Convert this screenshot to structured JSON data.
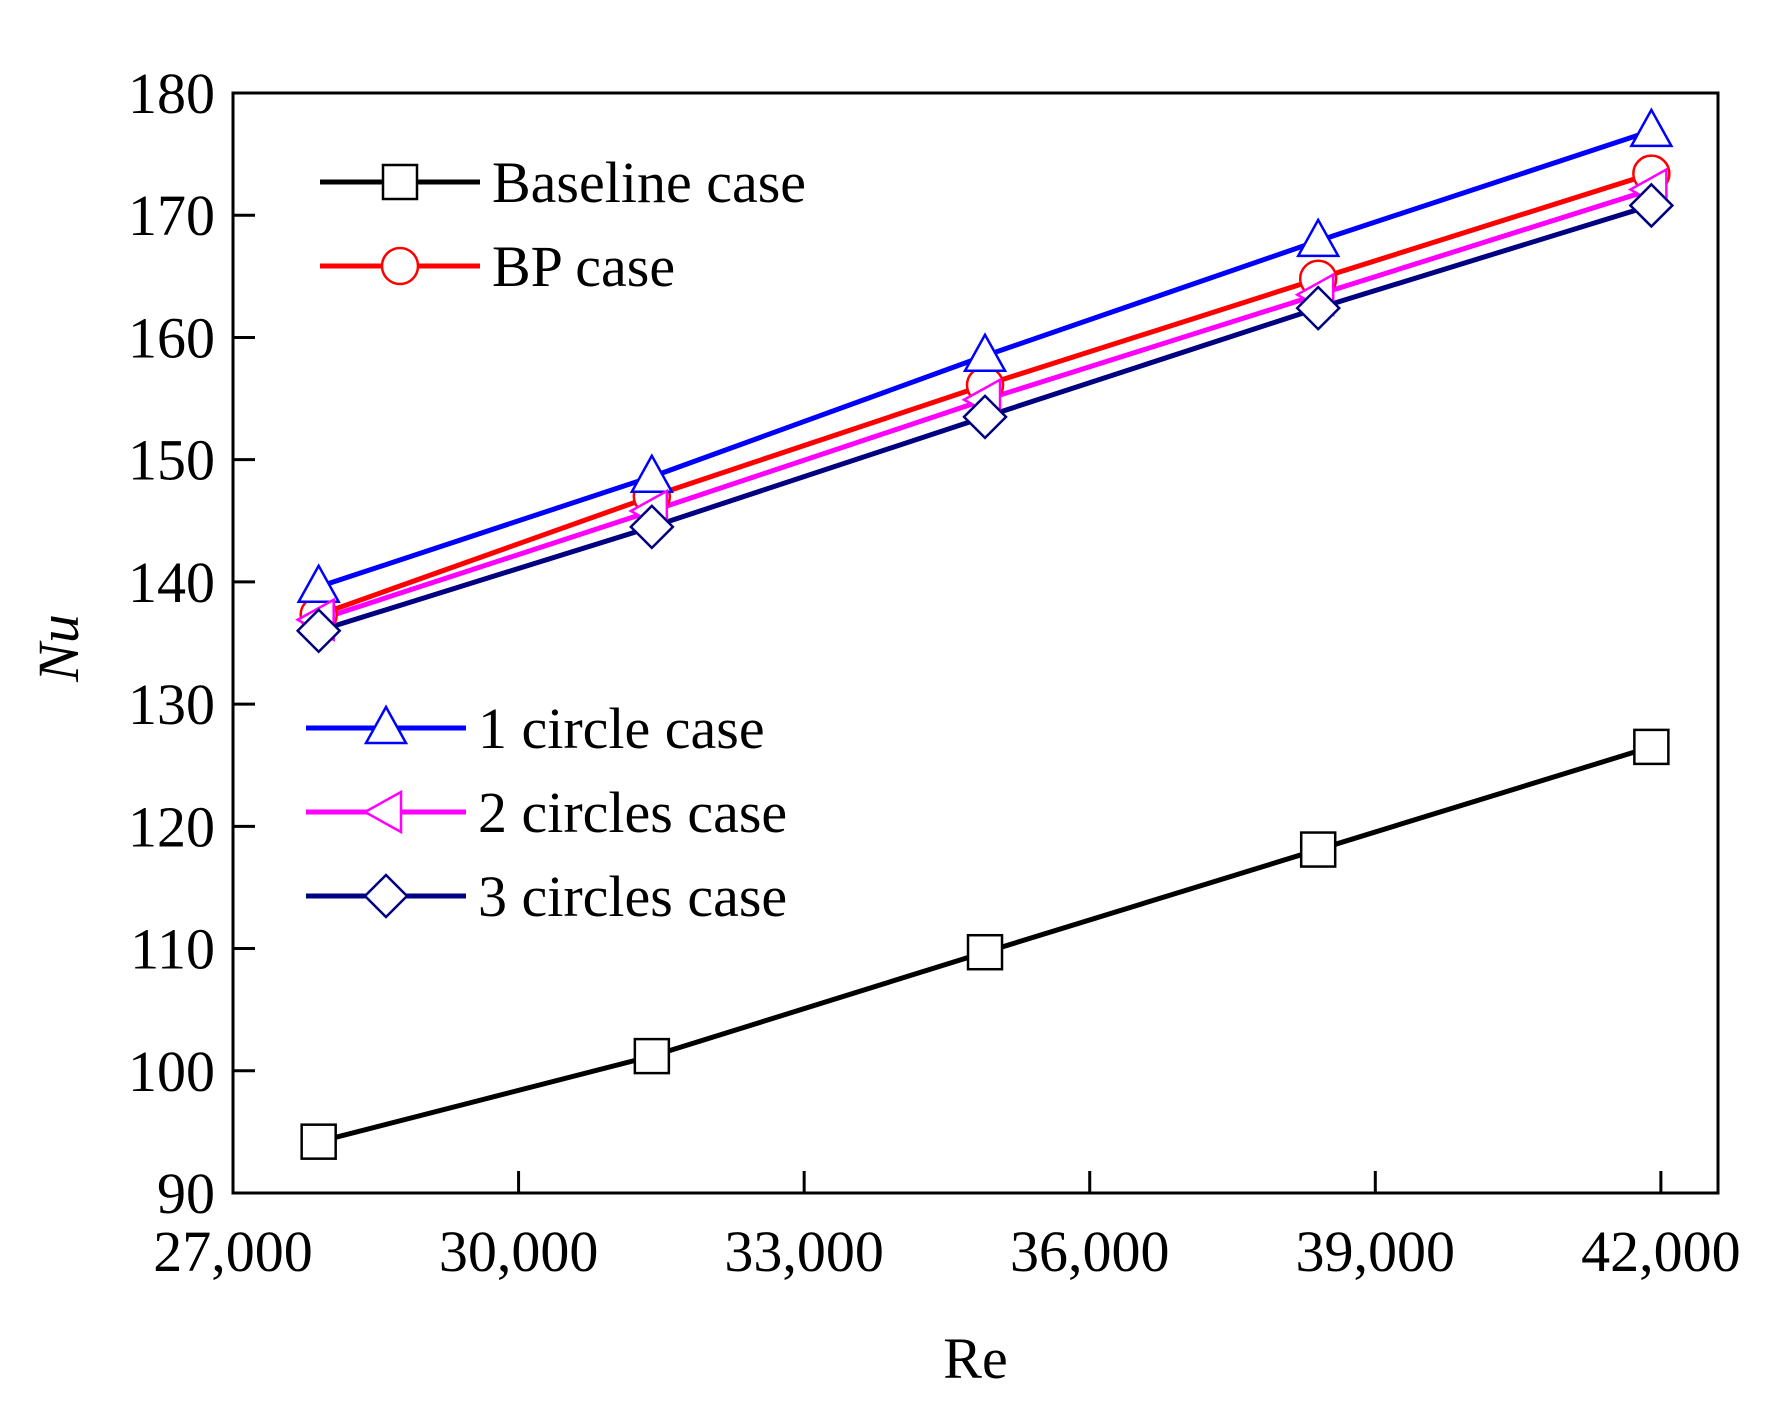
{
  "chart_data": {
    "type": "line",
    "xlabel": "Re",
    "ylabel": "Nu",
    "xlim": [
      27000,
      42600
    ],
    "ylim": [
      90,
      180
    ],
    "xticks": [
      27000,
      30000,
      33000,
      36000,
      39000,
      42000
    ],
    "xtick_labels": [
      "27,000",
      "30,000",
      "33,000",
      "36,000",
      "39,000",
      "42,000"
    ],
    "yticks": [
      90,
      100,
      110,
      120,
      130,
      140,
      150,
      160,
      170,
      180
    ],
    "ytick_labels": [
      "90",
      "100",
      "110",
      "120",
      "130",
      "140",
      "150",
      "160",
      "170",
      "180"
    ],
    "x": [
      27900,
      31400,
      34900,
      38400,
      41900
    ],
    "series": [
      {
        "name": "Baseline case",
        "marker": "square",
        "color": "#000000",
        "values": [
          94.2,
          101.2,
          109.7,
          118.1,
          126.5
        ]
      },
      {
        "name": "BP case",
        "marker": "circle",
        "color": "#ff0000",
        "values": [
          137.3,
          147.0,
          156.1,
          164.8,
          173.4
        ]
      },
      {
        "name": "1 circle case",
        "marker": "triangle-up",
        "color": "#0000ff",
        "values": [
          139.6,
          148.6,
          158.5,
          167.9,
          176.9
        ]
      },
      {
        "name": "2 circles case",
        "marker": "triangle-left",
        "color": "#ff00ff",
        "values": [
          136.9,
          145.8,
          154.9,
          163.5,
          172.1
        ]
      },
      {
        "name": "3 circles case",
        "marker": "diamond",
        "color": "#000080",
        "values": [
          136.0,
          144.5,
          153.5,
          162.4,
          170.8
        ]
      }
    ],
    "legend_groups": [
      {
        "placement": "top-left",
        "series_indices": [
          0,
          1
        ]
      },
      {
        "placement": "middle-left",
        "series_indices": [
          2,
          3,
          4
        ]
      }
    ]
  }
}
